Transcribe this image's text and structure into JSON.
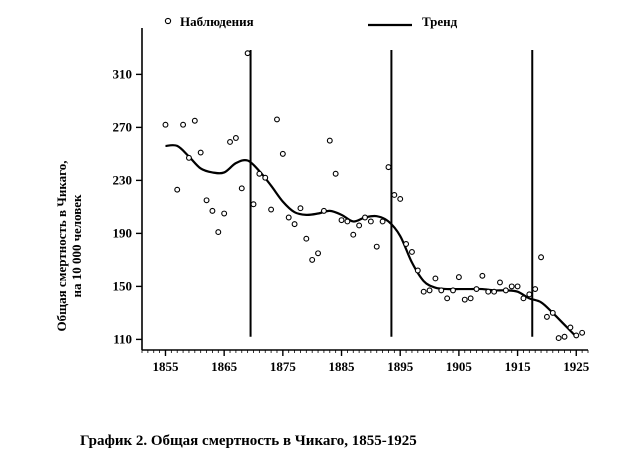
{
  "caption": "График 2. Общая смертность в Чикаго, 1855-1925",
  "chart_data": {
    "type": "scatter",
    "title": "",
    "ylabel_lines": [
      "Общая смертность в Чикаго,",
      "на 10 000 человек"
    ],
    "xlabel": "",
    "xlim": [
      1851,
      1927
    ],
    "ylim": [
      102,
      345
    ],
    "x_ticks": [
      1855,
      1865,
      1875,
      1885,
      1895,
      1905,
      1915,
      1925
    ],
    "y_ticks": [
      110,
      150,
      190,
      230,
      270,
      310
    ],
    "grid": false,
    "legend": {
      "placement": "top",
      "entries": [
        {
          "label": "Наблюдения",
          "marker": "open-circle"
        },
        {
          "label": "Тренд",
          "marker": "line"
        }
      ]
    },
    "vertical_lines": [
      1869.5,
      1893.5,
      1917.5
    ],
    "series": [
      {
        "name": "Наблюдения",
        "kind": "points",
        "points": [
          [
            1855,
            272
          ],
          [
            1857,
            223
          ],
          [
            1858,
            272
          ],
          [
            1859,
            247
          ],
          [
            1860,
            275
          ],
          [
            1861,
            251
          ],
          [
            1862,
            215
          ],
          [
            1863,
            207
          ],
          [
            1864,
            191
          ],
          [
            1865,
            205
          ],
          [
            1866,
            259
          ],
          [
            1867,
            262
          ],
          [
            1868,
            224
          ],
          [
            1869,
            326
          ],
          [
            1870,
            212
          ],
          [
            1871,
            235
          ],
          [
            1872,
            232
          ],
          [
            1873,
            208
          ],
          [
            1874,
            276
          ],
          [
            1875,
            250
          ],
          [
            1876,
            202
          ],
          [
            1877,
            197
          ],
          [
            1878,
            209
          ],
          [
            1879,
            186
          ],
          [
            1880,
            170
          ],
          [
            1881,
            175
          ],
          [
            1882,
            207
          ],
          [
            1883,
            260
          ],
          [
            1884,
            235
          ],
          [
            1885,
            200
          ],
          [
            1886,
            199
          ],
          [
            1887,
            189
          ],
          [
            1888,
            196
          ],
          [
            1889,
            202
          ],
          [
            1890,
            199
          ],
          [
            1891,
            180
          ],
          [
            1892,
            199
          ],
          [
            1893,
            240
          ],
          [
            1894,
            219
          ],
          [
            1895,
            216
          ],
          [
            1896,
            182
          ],
          [
            1897,
            176
          ],
          [
            1898,
            162
          ],
          [
            1899,
            146
          ],
          [
            1900,
            147
          ],
          [
            1901,
            156
          ],
          [
            1902,
            147
          ],
          [
            1903,
            141
          ],
          [
            1904,
            147
          ],
          [
            1905,
            157
          ],
          [
            1906,
            140
          ],
          [
            1907,
            141
          ],
          [
            1908,
            148
          ],
          [
            1909,
            158
          ],
          [
            1910,
            146
          ],
          [
            1911,
            146
          ],
          [
            1912,
            153
          ],
          [
            1913,
            147
          ],
          [
            1914,
            150
          ],
          [
            1915,
            150
          ],
          [
            1916,
            141
          ],
          [
            1917,
            144
          ],
          [
            1918,
            148
          ],
          [
            1919,
            172
          ],
          [
            1920,
            127
          ],
          [
            1921,
            130
          ],
          [
            1922,
            111
          ],
          [
            1923,
            112
          ],
          [
            1924,
            119
          ],
          [
            1925,
            113
          ],
          [
            1926,
            115
          ]
        ]
      },
      {
        "name": "Тренд",
        "kind": "line",
        "points": [
          [
            1855,
            256
          ],
          [
            1857,
            256
          ],
          [
            1859,
            248
          ],
          [
            1861,
            239
          ],
          [
            1863,
            236
          ],
          [
            1865,
            236
          ],
          [
            1867,
            243
          ],
          [
            1869,
            245
          ],
          [
            1871,
            237
          ],
          [
            1873,
            226
          ],
          [
            1875,
            214
          ],
          [
            1877,
            206
          ],
          [
            1879,
            204
          ],
          [
            1881,
            205
          ],
          [
            1883,
            207
          ],
          [
            1885,
            204
          ],
          [
            1887,
            199
          ],
          [
            1889,
            202
          ],
          [
            1891,
            203
          ],
          [
            1893,
            199
          ],
          [
            1895,
            188
          ],
          [
            1897,
            168
          ],
          [
            1899,
            154
          ],
          [
            1901,
            149
          ],
          [
            1903,
            148
          ],
          [
            1905,
            148
          ],
          [
            1907,
            148
          ],
          [
            1909,
            148
          ],
          [
            1911,
            147
          ],
          [
            1913,
            147
          ],
          [
            1915,
            146
          ],
          [
            1917,
            141
          ],
          [
            1919,
            138
          ],
          [
            1921,
            130
          ],
          [
            1923,
            121
          ],
          [
            1925,
            112
          ]
        ]
      }
    ]
  }
}
